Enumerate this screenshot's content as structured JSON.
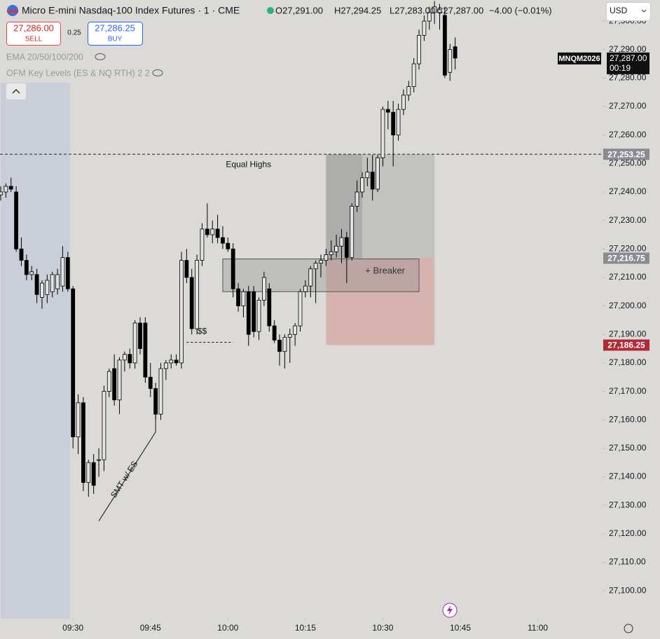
{
  "header": {
    "title": "Micro E-mini Nasdaq-100 Index Futures · 1 · CME",
    "open": "O27,291.00",
    "high": "H27,294.25",
    "low": "L27,283.00",
    "close": "C27,287.00",
    "change": "−4.00 (−0.01%)",
    "sell_price": "27,286.00",
    "sell": "SELL",
    "spread": "0.25",
    "buy_price": "27,286.25",
    "buy": "BUY",
    "currency": "USD"
  },
  "indicators": [
    "EMA 20/50/100/200",
    "OFM Key Levels (ES & NQ RTH) 2 2"
  ],
  "chart_data": {
    "type": "candlestick",
    "x": [
      "09:16",
      "09:17",
      "09:18",
      "09:19",
      "09:20",
      "09:21",
      "09:22",
      "09:23",
      "09:24",
      "09:25",
      "09:26",
      "09:27",
      "09:28",
      "09:29",
      "09:30",
      "09:31",
      "09:32",
      "09:33",
      "09:34",
      "09:35",
      "09:36",
      "09:37",
      "09:38",
      "09:39",
      "09:40",
      "09:41",
      "09:42",
      "09:43",
      "09:44",
      "09:45",
      "09:46",
      "09:47",
      "09:48",
      "09:49",
      "09:50",
      "09:51",
      "09:52",
      "09:53",
      "09:54",
      "09:55",
      "09:56",
      "09:57",
      "09:58",
      "09:59",
      "10:00",
      "10:01",
      "10:02",
      "10:03",
      "10:04",
      "10:05",
      "10:06",
      "10:07",
      "10:08",
      "10:09",
      "10:10",
      "10:11",
      "10:12",
      "10:13",
      "10:14",
      "10:15",
      "10:16",
      "10:17",
      "10:18",
      "10:19",
      "10:20",
      "10:21",
      "10:22",
      "10:23",
      "10:24",
      "10:25",
      "10:26",
      "10:27",
      "10:28",
      "10:29",
      "10:30",
      "10:31",
      "10:32",
      "10:33",
      "10:34",
      "10:35",
      "10:36",
      "10:37",
      "10:38",
      "10:39",
      "10:40",
      "10:41",
      "10:42",
      "10:43",
      "10:44"
    ],
    "open": [
      27239,
      27240,
      27242,
      27240,
      27220,
      27216,
      27211,
      27211,
      27203,
      27204,
      27205,
      27206,
      27207,
      27217,
      27206,
      27154,
      27166,
      27138,
      27145,
      27146,
      27146,
      27170,
      27178,
      27167,
      27181,
      27183,
      27180,
      27194,
      27194,
      27175,
      27171,
      27162,
      27178,
      27180,
      27181,
      27180,
      27216,
      27210,
      27192,
      27216,
      27227,
      27225,
      27227,
      27224,
      27222,
      27220,
      27206,
      27200,
      27205,
      27205,
      27191,
      27202,
      27206,
      27193,
      27188,
      27184,
      27189,
      27190,
      27193,
      27205,
      27207,
      27213,
      27215,
      27216,
      27218,
      27219,
      27221,
      27224,
      27217,
      27235,
      27240,
      27245,
      27247,
      27241,
      27252,
      27269,
      27268,
      27260,
      27269,
      27274,
      27277,
      27285,
      27295,
      27300,
      27303,
      27303,
      27302,
      27282,
      27291
    ],
    "high": [
      27242,
      27243,
      27245,
      27242,
      27224,
      27218,
      27214,
      27213,
      27209,
      27211,
      27212,
      27213,
      27221,
      27219,
      27207,
      27169,
      27168,
      27146,
      27148,
      27150,
      27172,
      27178,
      27183,
      27182,
      27184,
      27185,
      27195,
      27196,
      27196,
      27180,
      27173,
      27180,
      27181,
      27183,
      27183,
      27219,
      27220,
      27213,
      27218,
      27229,
      27236,
      27230,
      27232,
      27228,
      27224,
      27222,
      27208,
      27206,
      27207,
      27207,
      27203,
      27212,
      27208,
      27195,
      27190,
      27190,
      27192,
      27194,
      27206,
      27209,
      27214,
      27216,
      27218,
      27220,
      27223,
      27225,
      27227,
      27226,
      27236,
      27244,
      27247,
      27252,
      27253,
      27253,
      27270,
      27272,
      27272,
      27271,
      27276,
      27279,
      27287,
      27297,
      27302,
      27305,
      27307,
      27306,
      27305,
      27292,
      27294.25
    ],
    "low": [
      27237,
      27238,
      27240,
      27219,
      27214,
      27209,
      27209,
      27201,
      27199,
      27201,
      27203,
      27204,
      27205,
      27205,
      27150,
      27148,
      27135,
      27133,
      27134,
      27140,
      27142,
      27168,
      27165,
      27162,
      27177,
      27178,
      27178,
      27183,
      27173,
      27168,
      27160,
      27160,
      27174,
      27178,
      27179,
      27178,
      27208,
      27190,
      27190,
      27214,
      27224,
      27222,
      27222,
      27220,
      27219,
      27203,
      27198,
      27196,
      27186,
      27189,
      27188,
      27200,
      27191,
      27187,
      27179,
      27178,
      27180,
      27186,
      27191,
      27203,
      27203,
      27201,
      27210,
      27214,
      27216,
      27217,
      27215,
      27208,
      27216,
      27233,
      27238,
      27242,
      27237,
      27240,
      27249,
      27262,
      27249,
      27258,
      27267,
      27272,
      27275,
      27283,
      27293,
      27297,
      27299,
      27297,
      27280,
      27279,
      27283
    ],
    "close": [
      27240,
      27242,
      27241,
      27220,
      27216,
      27211,
      27212,
      27204,
      27208,
      27209,
      27211,
      27211,
      27217,
      27206,
      27154,
      27166,
      27138,
      27145,
      27137,
      27146,
      27170,
      27177,
      27167,
      27181,
      27183,
      27180,
      27194,
      27185,
      27175,
      27171,
      27162,
      27178,
      27180,
      27181,
      27180,
      27216,
      27210,
      27192,
      27216,
      27227,
      27225,
      27227,
      27224,
      27222,
      27220,
      27206,
      27200,
      27205,
      27190,
      27191,
      27202,
      27210,
      27193,
      27188,
      27184,
      27189,
      27190,
      27193,
      27205,
      27207,
      27213,
      27215,
      27216,
      27218,
      27219,
      27221,
      27224,
      27217,
      27235,
      27240,
      27245,
      27247,
      27241,
      27252,
      27269,
      27268,
      27260,
      27269,
      27274,
      27277,
      27285,
      27295,
      27300,
      27303,
      27305,
      27304,
      27281,
      27290,
      27287
    ],
    "up_color": "#e4e4e4",
    "down_color": "#000000",
    "wick_color": "#000000",
    "background": "#dbdad6",
    "xlim": [
      "09:16",
      "11:12"
    ],
    "xticks": [
      "09:30",
      "09:45",
      "10:00",
      "10:15",
      "10:30",
      "10:45",
      "11:00"
    ],
    "ylim": [
      27090.2,
      27307.4
    ],
    "yticks": [
      {
        "value": 27100,
        "label": "27,100.00"
      },
      {
        "value": 27110,
        "label": "27,110.00"
      },
      {
        "value": 27120,
        "label": "27,120.00"
      },
      {
        "value": 27130,
        "label": "27,130.00"
      },
      {
        "value": 27140,
        "label": "27,140.00"
      },
      {
        "value": 27150,
        "label": "27,150.00"
      },
      {
        "value": 27160,
        "label": "27,160.00"
      },
      {
        "value": 27170,
        "label": "27,170.00"
      },
      {
        "value": 27180,
        "label": "27,180.00"
      },
      {
        "value": 27190,
        "label": "27,190.00"
      },
      {
        "value": 27200,
        "label": "27,200.00"
      },
      {
        "value": 27210,
        "label": "27,210.00"
      },
      {
        "value": 27220,
        "label": "27,220.00"
      },
      {
        "value": 27230,
        "label": "27,230.00"
      },
      {
        "value": 27240,
        "label": "27,240.00"
      },
      {
        "value": 27250,
        "label": "27,250.00"
      },
      {
        "value": 27260,
        "label": "27,260.00"
      },
      {
        "value": 27270,
        "label": "27,270.00"
      },
      {
        "value": 27280,
        "label": "27,280.00"
      },
      {
        "value": 27290,
        "label": "27,290.00"
      },
      {
        "value": 27300,
        "label": "27,300.00"
      }
    ],
    "grid": false,
    "session_shade": {
      "from": "09:16",
      "to": "09:30",
      "color": "#c9ced8"
    },
    "zones": [
      {
        "from": "10:19",
        "to": "10:40",
        "low": 27216.75,
        "high": 27253.25,
        "color": "rgba(150,150,150,0.35)"
      },
      {
        "from": "10:19",
        "to": "10:26",
        "low": 27216.75,
        "high": 27253.25,
        "color": "rgba(110,110,110,0.25)"
      },
      {
        "from": "10:19",
        "to": "10:40",
        "low": 27186.25,
        "high": 27216.75,
        "color": "rgba(210,120,120,0.4)"
      },
      {
        "from": "09:59",
        "to": "10:37",
        "low": 27205,
        "high": 27216.5,
        "color": "rgba(140,140,140,0.35)",
        "label": "+ Breaker"
      }
    ],
    "levels": [
      {
        "value": 27253.25,
        "label": "27,253.25",
        "color": "#8a8c94",
        "line": true
      },
      {
        "value": 27216.75,
        "label": "27,216.75",
        "color": "#8a8c94",
        "line": false
      },
      {
        "value": 27186.25,
        "label": "27,186.25",
        "color": "#b22833",
        "line": false
      }
    ],
    "last_price": {
      "symbol": "MNQM2026",
      "value": 27287,
      "label": "27,287.00",
      "countdown": "00:19"
    },
    "annotations": [
      {
        "text": "Equal Highs",
        "time": "10:04",
        "price": 27249.5
      },
      {
        "text": "$$",
        "time": "09:55",
        "price": 27191
      },
      {
        "text": "SMT w/ ES",
        "time": "09:40",
        "price": 27139,
        "angle": -57
      }
    ],
    "lines": [
      {
        "times": [
          "09:52",
          "10:01"
        ],
        "prices": [
          27187.25,
          27187.25
        ],
        "dash": true
      },
      {
        "times": [
          "09:35",
          "09:46",
          "09:46"
        ],
        "prices": [
          27124.5,
          27155.75,
          27163
        ],
        "dash": false
      }
    ]
  }
}
